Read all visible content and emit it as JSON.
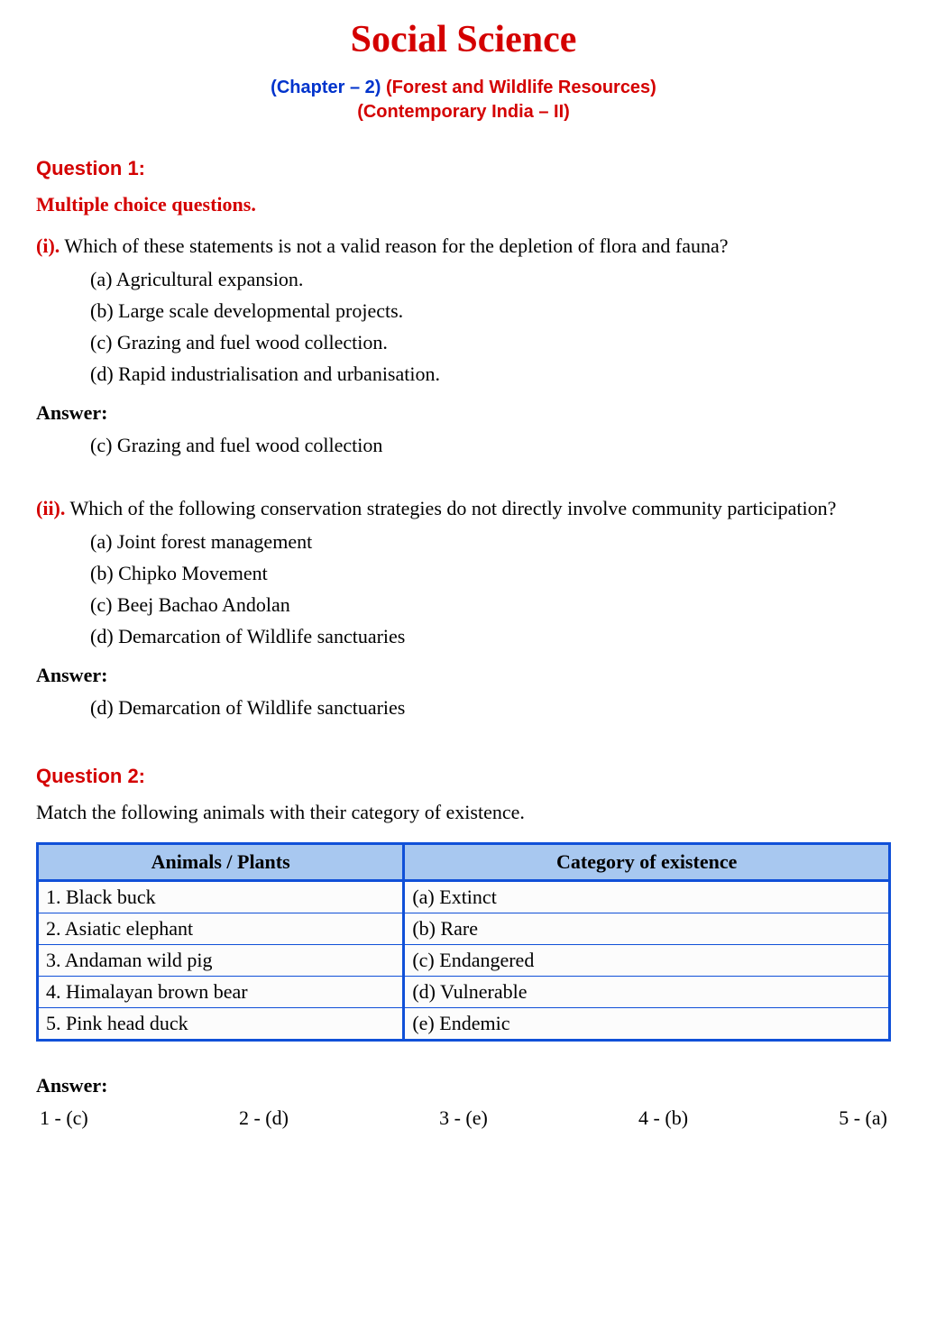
{
  "title": "Social Science",
  "chapter": {
    "prefix": "(Chapter – 2) ",
    "name": "(Forest and Wildlife Resources)",
    "sub": "(Contemporary India – II)"
  },
  "q1": {
    "heading": "Question 1:",
    "subheading": "Multiple choice questions.",
    "items": [
      {
        "num": "(i).",
        "stem": " Which of these statements is not a valid reason for the depletion of flora and fauna?",
        "options": [
          "(a) Agricultural expansion.",
          "(b) Large scale developmental projects.",
          "(c) Grazing and fuel wood collection.",
          "(d) Rapid industrialisation and urbanisation."
        ],
        "answer_label": "Answer:",
        "answer": "(c) Grazing and fuel wood collection"
      },
      {
        "num": "(ii).",
        "stem": " Which of the following conservation strategies do not directly involve community participation?",
        "options": [
          "(a) Joint forest management",
          "(b) Chipko Movement",
          "(c) Beej Bachao Andolan",
          "(d) Demarcation of Wildlife sanctuaries"
        ],
        "answer_label": "Answer:",
        "answer": "(d) Demarcation of Wildlife sanctuaries"
      }
    ]
  },
  "q2": {
    "heading": "Question 2:",
    "intro": "Match the following animals with their category of existence.",
    "table": {
      "columns": [
        "Animals / Plants",
        "Category of existence"
      ],
      "rows": [
        [
          "1. Black buck",
          "(a) Extinct"
        ],
        [
          "2. Asiatic elephant",
          "(b) Rare"
        ],
        [
          "3. Andaman wild pig",
          "(c) Endangered"
        ],
        [
          "4. Himalayan brown bear",
          "(d) Vulnerable"
        ],
        [
          "5. Pink head duck",
          "(e) Endemic"
        ]
      ],
      "header_bg": "#a8c8f0",
      "border_color": "#1050d8"
    },
    "answer_label": "Answer:",
    "answers": [
      "1  -  (c)",
      "2  -  (d)",
      "3  -  (e)",
      "4  -  (b)",
      "5  -  (a)"
    ]
  },
  "colors": {
    "accent_red": "#d40000",
    "accent_blue": "#0033cc",
    "text": "#000000",
    "background": "#ffffff"
  }
}
